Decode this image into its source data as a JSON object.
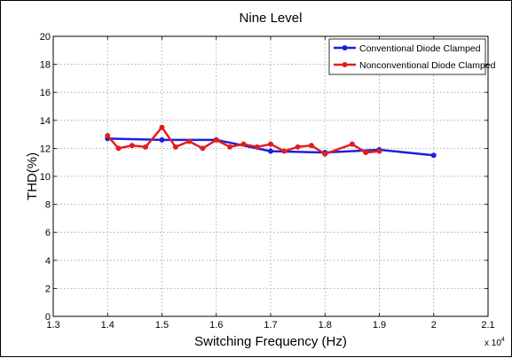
{
  "chart_data": {
    "type": "line",
    "title": "Nine Level",
    "xlabel": "Switching Frequency (Hz)",
    "ylabel": "THD(%)",
    "x_multiplier": "x 10",
    "x_multiplier_exp": "4",
    "xlim": [
      1.3,
      2.1
    ],
    "ylim": [
      0,
      20
    ],
    "xticks": [
      "1.3",
      "1.4",
      "1.5",
      "1.6",
      "1.7",
      "1.8",
      "1.9",
      "2",
      "2.1"
    ],
    "yticks": [
      "0",
      "2",
      "4",
      "6",
      "8",
      "10",
      "12",
      "14",
      "16",
      "18",
      "20"
    ],
    "grid": true,
    "legend_position": "top-right",
    "series": [
      {
        "name": "Conventional Diode Clamped",
        "color": "#1f1fe0",
        "x": [
          1.4,
          1.5,
          1.6,
          1.7,
          1.8,
          1.9,
          2.0
        ],
        "y": [
          12.7,
          12.6,
          12.6,
          11.8,
          11.7,
          11.9,
          11.5
        ]
      },
      {
        "name": "Nonconventional Diode Clamped",
        "color": "#e01f1f",
        "x": [
          1.4,
          1.42,
          1.445,
          1.47,
          1.5,
          1.525,
          1.55,
          1.575,
          1.6,
          1.625,
          1.65,
          1.675,
          1.7,
          1.725,
          1.75,
          1.775,
          1.8,
          1.85,
          1.875,
          1.9
        ],
        "y": [
          12.9,
          12.0,
          12.2,
          12.1,
          13.5,
          12.1,
          12.5,
          12.0,
          12.6,
          12.1,
          12.3,
          12.1,
          12.3,
          11.8,
          12.1,
          12.2,
          11.6,
          12.3,
          11.7,
          11.8
        ]
      }
    ]
  }
}
